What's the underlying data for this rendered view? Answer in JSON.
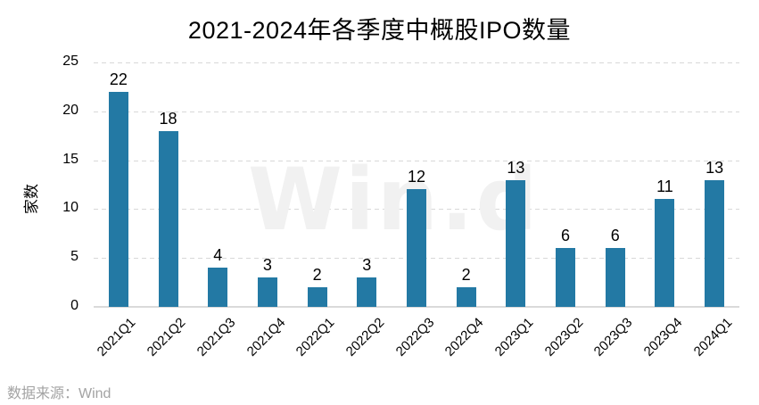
{
  "watermark": "Win.d",
  "source_note": "数据来源：Wind",
  "chart_data": {
    "type": "bar",
    "title": "2021-2024年各季度中概股IPO数量",
    "categories": [
      "2021Q1",
      "2021Q2",
      "2021Q3",
      "2021Q4",
      "2022Q1",
      "2022Q2",
      "2022Q3",
      "2022Q4",
      "2023Q1",
      "2023Q2",
      "2023Q3",
      "2023Q4",
      "2024Q1"
    ],
    "values": [
      22,
      18,
      4,
      3,
      2,
      3,
      12,
      2,
      13,
      6,
      6,
      11,
      13
    ],
    "xlabel": "",
    "ylabel": "家数",
    "ylim": [
      0,
      25
    ],
    "yticks": [
      0,
      5,
      10,
      15,
      20,
      25
    ],
    "grid": "horizontal-dashed",
    "legend": "none",
    "data_labels": true,
    "bar_color": "#2379a4",
    "gridline_color": "#d8d8d8",
    "axisline_color": "#dadada",
    "text_color": "#000000",
    "source": "数据来源：Wind"
  }
}
